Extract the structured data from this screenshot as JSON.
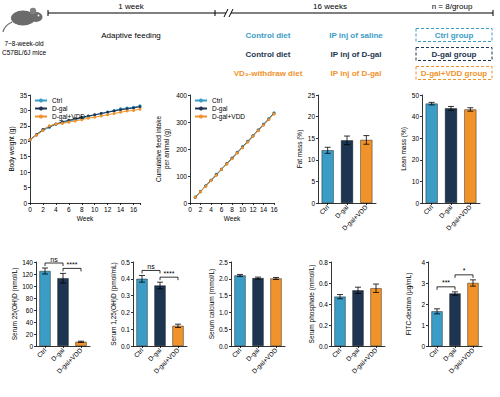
{
  "header": {
    "subject": [
      "7~8-week-old",
      "C57BL/6J mice"
    ],
    "phases": [
      {
        "duration": "1 week",
        "label": "Adaptive feeding"
      },
      {
        "duration": "16 weeks"
      }
    ],
    "sample_size": "n = 8/group",
    "groups": [
      {
        "diet": "Control diet",
        "injection": "IP inj of saline",
        "name": "Ctrl group",
        "color": "#3b9cc6"
      },
      {
        "diet": "Control diet",
        "injection": "IP inj of D-gal",
        "name": "D-gal group",
        "color": "#1d3550"
      },
      {
        "diet": "VD₃-withdraw diet",
        "injection": "IP inj of D-gal",
        "name": "D-gal+VDD group",
        "color": "#f0932b"
      }
    ]
  },
  "chart_data": [
    {
      "type": "line",
      "ylabel": "Body weight (g)",
      "xlabel": "Week",
      "x": [
        0,
        1,
        2,
        3,
        4,
        5,
        6,
        7,
        8,
        9,
        10,
        11,
        12,
        13,
        14,
        15,
        16,
        17
      ],
      "series": [
        {
          "name": "Ctrl",
          "color": "#3b9cc6",
          "values": [
            20.5,
            22,
            23.5,
            24.5,
            25.5,
            26,
            26.5,
            27,
            27.5,
            28,
            28.5,
            29,
            29.5,
            30,
            30.5,
            30.8,
            31,
            31.5
          ]
        },
        {
          "name": "D-gal",
          "color": "#1d3550",
          "values": [
            20.5,
            22.2,
            23.8,
            24.8,
            25.6,
            26.3,
            26.8,
            27.3,
            27.8,
            28.2,
            28.6,
            29,
            29.4,
            29.8,
            30.2,
            30.5,
            30.8,
            31.2
          ]
        },
        {
          "name": "D-gal+VDD",
          "color": "#f0932b",
          "values": [
            20.5,
            22,
            23.5,
            25,
            25.6,
            25.8,
            26.2,
            26.6,
            27,
            27.5,
            27.8,
            28.2,
            28.6,
            29,
            29.4,
            29.8,
            30,
            30.4
          ]
        }
      ],
      "xlim": [
        0,
        17
      ],
      "xticks": [
        0,
        2,
        4,
        6,
        8,
        10,
        12,
        14,
        16
      ],
      "ylim": [
        0,
        35
      ],
      "yticks": [
        0,
        5,
        10,
        15,
        20,
        25,
        30,
        35
      ],
      "legend": "upper left",
      "marker": "circle",
      "line_style": "solid",
      "grid": false
    },
    {
      "type": "line",
      "ylabel": "Cumulative feed intake\nper animal (g)",
      "xlabel": "Week",
      "x": [
        1,
        2,
        3,
        4,
        5,
        6,
        7,
        8,
        9,
        10,
        11,
        12,
        13,
        14,
        15,
        16
      ],
      "series": [
        {
          "name": "Ctrl",
          "color": "#3b9cc6",
          "values": [
            22,
            43,
            64,
            85,
            106,
            126,
            146,
            167,
            188,
            209,
            229,
            250,
            271,
            292,
            313,
            334
          ]
        },
        {
          "name": "D-gal",
          "color": "#1d3550",
          "values": [
            21,
            42,
            63,
            83,
            104,
            124,
            145,
            165,
            186,
            206,
            227,
            248,
            269,
            290,
            310,
            331
          ]
        },
        {
          "name": "D-gal+VDD",
          "color": "#f0932b",
          "values": [
            21,
            42,
            62,
            83,
            103,
            124,
            144,
            164,
            185,
            205,
            226,
            247,
            268,
            289,
            309,
            330
          ]
        }
      ],
      "xlim": [
        0,
        16
      ],
      "xticks": [
        0,
        2,
        4,
        6,
        8,
        10,
        12,
        14,
        16
      ],
      "ylim": [
        0,
        400
      ],
      "yticks": [
        0,
        100,
        200,
        300,
        400
      ],
      "legend": "upper left",
      "marker": "circle",
      "line_style": "solid",
      "grid": false
    },
    {
      "type": "bar",
      "ylabel": "Fat mass (%)",
      "categories": [
        "Ctrl",
        "D-gal",
        "D-gal+VDD"
      ],
      "values": [
        12.2,
        14.5,
        14.6
      ],
      "errors": [
        0.7,
        1.0,
        1.0
      ],
      "colors": [
        "#3b9cc6",
        "#1d3550",
        "#f0932b"
      ],
      "ylim": [
        0,
        25
      ],
      "yticks": [
        0,
        5,
        10,
        15,
        20,
        25
      ],
      "grid": false
    },
    {
      "type": "bar",
      "ylabel": "Lean mass (%)",
      "categories": [
        "Ctrl",
        "D-gal",
        "D-gal+VDD"
      ],
      "values": [
        46.0,
        43.8,
        43.3
      ],
      "errors": [
        0.6,
        0.9,
        0.8
      ],
      "colors": [
        "#3b9cc6",
        "#1d3550",
        "#f0932b"
      ],
      "ylim": [
        0,
        50
      ],
      "yticks": [
        0,
        10,
        20,
        30,
        40,
        50
      ],
      "grid": false
    },
    {
      "type": "bar",
      "ylabel": "Serum 25(OH)D (nmol/L)",
      "categories": [
        "Ctrl",
        "D-gal",
        "D-gal+VDD"
      ],
      "values": [
        125,
        113,
        7
      ],
      "errors": [
        5,
        8,
        1
      ],
      "colors": [
        "#3b9cc6",
        "#1d3550",
        "#f0932b"
      ],
      "ylim": [
        0,
        140
      ],
      "yticks": [
        0,
        20,
        40,
        60,
        80,
        100,
        120,
        140
      ],
      "grid": false,
      "annotations": [
        {
          "between": [
            "Ctrl",
            "D-gal"
          ],
          "text": "ns"
        },
        {
          "between": [
            "D-gal",
            "D-gal+VDD"
          ],
          "text": "****"
        }
      ]
    },
    {
      "type": "bar",
      "ylabel": "Serum 1,25(OH)D (pmol/mL)",
      "categories": [
        "Ctrl",
        "D-gal",
        "D-gal+VDD"
      ],
      "values": [
        0.4,
        0.36,
        0.12
      ],
      "errors": [
        0.02,
        0.02,
        0.01
      ],
      "colors": [
        "#3b9cc6",
        "#1d3550",
        "#f0932b"
      ],
      "ylim": [
        0,
        0.5
      ],
      "yticks": [
        {
          "value": 0,
          "label": "0.0"
        },
        0.1,
        0.2,
        0.3,
        0.4,
        0.5
      ],
      "grid": false,
      "annotations": [
        {
          "between": [
            "Ctrl",
            "D-gal"
          ],
          "text": "ns"
        },
        {
          "between": [
            "D-gal",
            "D-gal+VDD"
          ],
          "text": "****"
        }
      ]
    },
    {
      "type": "bar",
      "ylabel": "Serum calcium (mmol/L)",
      "categories": [
        "Ctrl",
        "D-gal",
        "D-gal+VDD"
      ],
      "values": [
        2.1,
        2.02,
        2.01
      ],
      "errors": [
        0.03,
        0.03,
        0.03
      ],
      "colors": [
        "#3b9cc6",
        "#1d3550",
        "#f0932b"
      ],
      "ylim": [
        0,
        2.5
      ],
      "yticks": [
        {
          "value": 0,
          "label": "0.0"
        },
        0.5,
        {
          "value": 1,
          "label": "1.0"
        },
        1.5,
        {
          "value": 2,
          "label": "2.0"
        },
        2.5
      ],
      "grid": false
    },
    {
      "type": "bar",
      "ylabel": "Serum phosphate (mmol/L)",
      "categories": [
        "Ctrl",
        "D-gal",
        "D-gal+VDD"
      ],
      "values": [
        0.47,
        0.53,
        0.55
      ],
      "errors": [
        0.02,
        0.03,
        0.04
      ],
      "colors": [
        "#3b9cc6",
        "#1d3550",
        "#f0932b"
      ],
      "ylim": [
        0,
        0.8
      ],
      "yticks": [
        {
          "value": 0,
          "label": "0.0"
        },
        0.2,
        0.4,
        0.6,
        0.8
      ],
      "grid": false
    },
    {
      "type": "bar",
      "ylabel": "FITC-dextran (μg/mL)",
      "categories": [
        "Ctrl",
        "D-gal",
        "D-gal+VDD"
      ],
      "values": [
        1.65,
        2.5,
        3.0
      ],
      "errors": [
        0.12,
        0.08,
        0.15
      ],
      "colors": [
        "#3b9cc6",
        "#1d3550",
        "#f0932b"
      ],
      "ylim": [
        0,
        4
      ],
      "yticks": [
        0,
        1,
        2,
        3,
        4
      ],
      "grid": false,
      "annotations": [
        {
          "between": [
            "Ctrl",
            "D-gal"
          ],
          "text": "***"
        },
        {
          "between": [
            "D-gal",
            "D-gal+VDD"
          ],
          "text": "*"
        }
      ]
    }
  ]
}
